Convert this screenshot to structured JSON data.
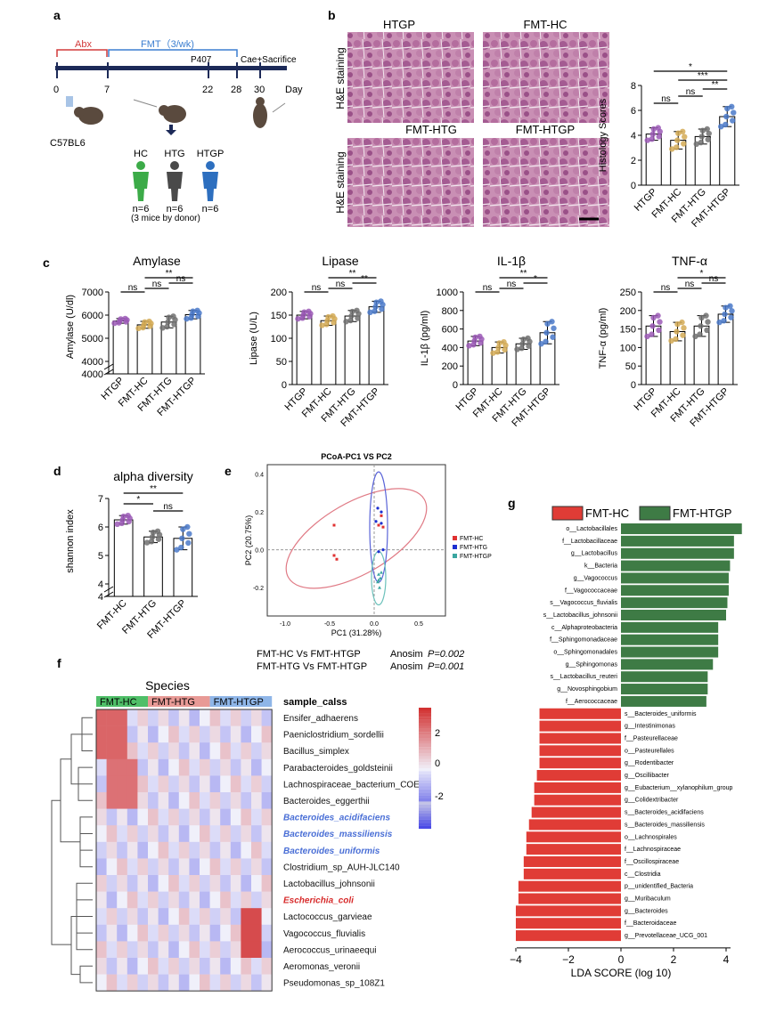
{
  "panel_letters": {
    "a": "a",
    "b": "b",
    "c": "c",
    "d": "d",
    "e": "e",
    "f": "f",
    "g": "g"
  },
  "panel_a": {
    "abx_label": "Abx",
    "fmt_label": "FMT（3/wk)",
    "p407_label": "P407",
    "cae_label": "Cae+Sacrifice",
    "day_ticks": [
      "0",
      "7",
      "22",
      "28",
      "30"
    ],
    "day_label": "Day",
    "strain_label": "C57BL6",
    "donors": [
      {
        "name": "HC",
        "n": "n=6",
        "color": "#3cab48"
      },
      {
        "name": "HTG",
        "n": "n=6",
        "color": "#4a4a4a"
      },
      {
        "name": "HTGP",
        "n": "n=6",
        "color": "#2d6fbf"
      }
    ],
    "donor_note": "(3 mice by donor)"
  },
  "panel_b": {
    "image_titles": [
      "HTGP",
      "FMT-HC",
      "FMT-HTG",
      "FMT-HTGP"
    ],
    "row_label": "H&E staining",
    "chart": {
      "ylabel": "Histology Scores",
      "yticks": [
        "0",
        "2",
        "4",
        "6",
        "8"
      ],
      "categories": [
        "HTGP",
        "FMT-HC",
        "FMT-HTG",
        "FMT-HTGP"
      ],
      "values": [
        4.1,
        3.6,
        3.9,
        5.5
      ],
      "errors": [
        0.5,
        0.7,
        0.6,
        0.8
      ],
      "sig": [
        "ns",
        "ns",
        "**",
        "***",
        "*"
      ]
    }
  },
  "panel_c": [
    {
      "title": "Amylase",
      "ylabel": "Amylase (U/dl)",
      "yticks": [
        "7000",
        "6000",
        "5000",
        "4000",
        "4000"
      ],
      "categories": [
        "HTGP",
        "FMT-HC",
        "FMT-HTG",
        "FMT-HTGP"
      ],
      "values": [
        5750,
        5580,
        5700,
        6020
      ],
      "errors": [
        100,
        150,
        250,
        180
      ],
      "sig": [
        "ns",
        "ns",
        "ns",
        "**"
      ]
    },
    {
      "title": "Lipase",
      "ylabel": "Lipase (U/L)",
      "yticks": [
        "200",
        "150",
        "100",
        "50",
        "0"
      ],
      "categories": [
        "HTGP",
        "FMT-HC",
        "FMT-HTG",
        "FMT-HTGP"
      ],
      "values": [
        150,
        138,
        148,
        168
      ],
      "errors": [
        8,
        10,
        12,
        12
      ],
      "sig": [
        "ns",
        "ns",
        "**",
        "**"
      ]
    },
    {
      "title": "IL-1β",
      "ylabel": "IL-1β (pg/ml)",
      "yticks": [
        "1000",
        "800",
        "600",
        "400",
        "200",
        "0"
      ],
      "categories": [
        "HTGP",
        "FMT-HC",
        "FMT-HTG",
        "FMT-HTGP"
      ],
      "values": [
        470,
        400,
        440,
        560
      ],
      "errors": [
        50,
        60,
        60,
        120
      ],
      "sig": [
        "ns",
        "ns",
        "*",
        "**"
      ]
    },
    {
      "title": "TNF-α",
      "ylabel": "TNF-α (pg/ml)",
      "yticks": [
        "250",
        "200",
        "150",
        "100",
        "50",
        "0"
      ],
      "categories": [
        "HTGP",
        "FMT-HC",
        "FMT-HTG",
        "FMT-HTGP"
      ],
      "values": [
        158,
        143,
        158,
        190
      ],
      "errors": [
        28,
        25,
        28,
        22
      ],
      "sig": [
        "ns",
        "ns",
        "ns",
        "*"
      ]
    }
  ],
  "panel_d": {
    "title": "alpha diversity",
    "ylabel": "shannon index",
    "yticks": [
      "7",
      "6",
      "5",
      "4",
      "4"
    ],
    "categories": [
      "FMT-HC",
      "FMT-HTG",
      "FMT-HTGP"
    ],
    "values": [
      6.25,
      5.65,
      5.6
    ],
    "errors": [
      0.15,
      0.2,
      0.4
    ],
    "sig": [
      "*",
      "ns",
      "**"
    ]
  },
  "panel_e": {
    "title": "PCoA-PC1 VS PC2",
    "xlabel": "PC1 (31.28%)",
    "ylabel": "PC2 (20.75%)",
    "xticks": [
      "-1.0",
      "-0.5",
      "0.0",
      "0.5"
    ],
    "yticks": [
      "0.4",
      "0.2",
      "0.0",
      "-0.2"
    ],
    "legend": [
      {
        "name": "FMT-HC",
        "color": "#e03131"
      },
      {
        "name": "FMT-HTG",
        "color": "#1c2fd0"
      },
      {
        "name": "FMT-HTGP",
        "color": "#3aa6a0"
      }
    ],
    "anosim": [
      {
        "label": "FMT-HC Vs FMT-HTGP",
        "stat": "Anosim",
        "p": "P=0.002"
      },
      {
        "label": "FMT-HTG Vs FMT-HTGP",
        "stat": "Anosim",
        "p": "P=0.001"
      }
    ]
  },
  "panel_f": {
    "title": "Species",
    "groups": [
      {
        "name": "FMT-HC",
        "color": "#4fbf68"
      },
      {
        "name": "FMT-HTG",
        "color": "#e89a96"
      },
      {
        "name": "FMT-HTGP",
        "color": "#8fb6e8"
      }
    ],
    "header_label": "sample_calss",
    "species": [
      {
        "name": "Ensifer_adhaerens",
        "style": "normal"
      },
      {
        "name": "Paeniclostridium_sordellii",
        "style": "normal"
      },
      {
        "name": "Bacillus_simplex",
        "style": "normal"
      },
      {
        "name": "Parabacteroides_goldsteinii",
        "style": "normal"
      },
      {
        "name": "Lachnospiraceae_bacterium_COE1",
        "style": "normal"
      },
      {
        "name": "Bacteroides_eggerthii",
        "style": "normal"
      },
      {
        "name": "Bacteroides_acidifaciens",
        "style": "blue"
      },
      {
        "name": "Bacteroides_massiliensis",
        "style": "blue"
      },
      {
        "name": "Bacteroides_uniformis",
        "style": "blue"
      },
      {
        "name": "Clostridium_sp_AUH-JLC140",
        "style": "normal"
      },
      {
        "name": "Lactobacillus_johnsonii",
        "style": "normal"
      },
      {
        "name": "Escherichia_coli",
        "style": "red"
      },
      {
        "name": "Lactococcus_garvieae",
        "style": "normal"
      },
      {
        "name": "Vagococcus_fluvialis",
        "style": "normal"
      },
      {
        "name": "Aerococcus_urinaeequi",
        "style": "normal"
      },
      {
        "name": "Aeromonas_veronii",
        "style": "normal"
      },
      {
        "name": "Pseudomonas_sp_108Z1",
        "style": "normal"
      }
    ],
    "scale_ticks": [
      "2",
      "0",
      "-2"
    ]
  },
  "panel_g": {
    "legend": [
      {
        "name": "FMT-HC",
        "color": "#e03c36"
      },
      {
        "name": "FMT-HTGP",
        "color": "#3e7b45"
      }
    ],
    "xlabel": "LDA SCORE (log 10)",
    "xticks": [
      "−4",
      "−2",
      "0",
      "2",
      "4"
    ],
    "chart_data": {
      "type": "bar",
      "orientation": "horizontal",
      "categories": [
        "o__Lactobacillales",
        "f__Lactobacillaceae",
        "g__Lactobacillus",
        "k__Bacteria",
        "g__Vagococcus",
        "f__Vagococcaceae",
        "s__Vagococcus_fluvialis",
        "s__Lactobacillus_johnsonii",
        "c__Alphaproteobacteria",
        "f__Sphingomonadaceae",
        "o__Sphingomonadales",
        "g__Sphingomonas",
        "s__Lactobacillus_reuteri",
        "g__Novosphingobium",
        "f__Aerococcaceae",
        "s__Bacteroides_uniformis",
        "g__Intestinimonas",
        "f__Pasteurellaceae",
        "o__Pasteurellales",
        "g__Rodentibacter",
        "g__Oscillibacter",
        "g__Eubacterium__xylanophilum_group",
        "g__Colidextribacter",
        "s__Bacteroides_acidifaciens",
        "s__Bacteroides_massiliensis",
        "o__Lachnospirales",
        "f__Lachnospiraceae",
        "f__Oscillospiraceae",
        "c__Clostridia",
        "p__unidentified_Bacteria",
        "g__Muribaculum",
        "g__Bacteroides",
        "f__Bacteroidaceae",
        "g__Prevotellaceae_UCG_001"
      ],
      "values": [
        4.6,
        4.3,
        4.3,
        4.15,
        4.1,
        4.1,
        4.05,
        4.0,
        3.7,
        3.7,
        3.7,
        3.5,
        3.3,
        3.3,
        3.25,
        -3.1,
        -3.1,
        -3.1,
        -3.1,
        -3.1,
        -3.2,
        -3.3,
        -3.3,
        -3.4,
        -3.5,
        -3.6,
        -3.6,
        -3.7,
        -3.7,
        -3.9,
        -3.9,
        -4.0,
        -4.0,
        -4.0
      ],
      "xlim": [
        -4.5,
        5
      ]
    }
  }
}
